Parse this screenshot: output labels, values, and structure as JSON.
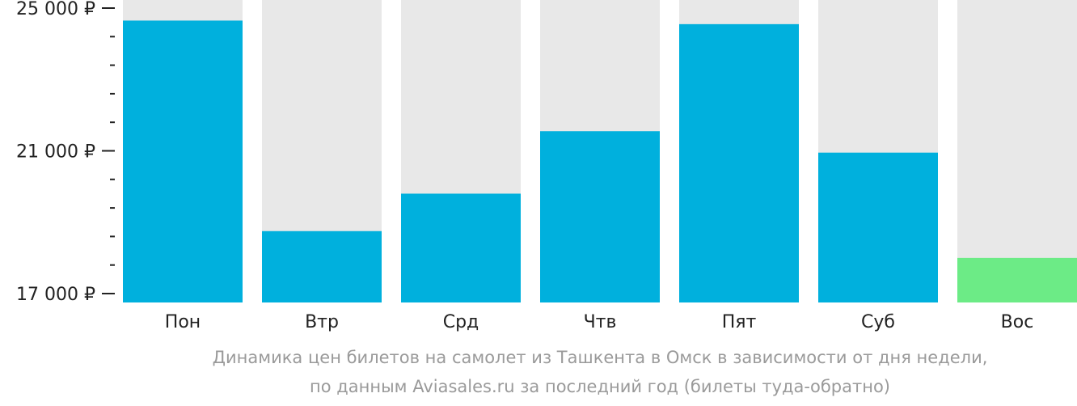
{
  "chart_data": {
    "type": "bar",
    "categories": [
      "Пон",
      "Втр",
      "Срд",
      "Чтв",
      "Пят",
      "Суб",
      "Вос"
    ],
    "values": [
      24650,
      18750,
      19800,
      21550,
      24550,
      20950,
      18000
    ],
    "highlight_index": 6,
    "ylim": [
      16750,
      25250
    ],
    "major_ticks": [
      17000,
      21000,
      25000
    ],
    "major_tick_labels": [
      "17 000 ₽",
      "21 000 ₽",
      "25 000 ₽"
    ],
    "minor_ticks": [
      17800,
      18600,
      19400,
      20200,
      21800,
      22600,
      23400,
      24200
    ],
    "title": "",
    "xlabel": "",
    "ylabel": "",
    "grid": false
  },
  "colors": {
    "bar": "#00b0dd",
    "bar_highlight": "#6ceb86",
    "track": "#e8e8e8",
    "axis": "#222222"
  },
  "caption": {
    "line1": "Динамика цен билетов на самолет из Ташкента в Омск в зависимости от дня недели,",
    "line2": "по данным Aviasales.ru за последний год (билеты туда-обратно)"
  }
}
